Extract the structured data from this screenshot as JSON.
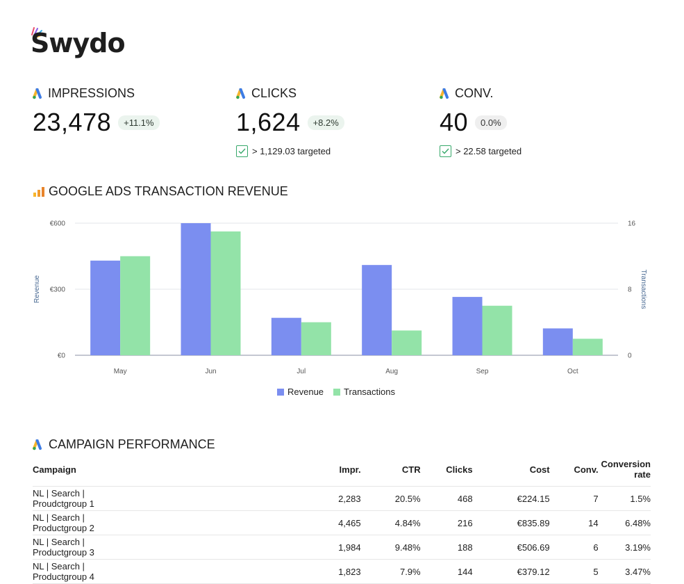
{
  "brand": {
    "logo_text": "Swydo"
  },
  "kpis": [
    {
      "title": "IMPRESSIONS",
      "value": "23,478",
      "change": "+11.1%",
      "target": ""
    },
    {
      "title": "CLICKS",
      "value": "1,624",
      "change": "+8.2%",
      "target": "> 1,129.03 targeted"
    },
    {
      "title": "CONV.",
      "value": "40",
      "change": "0.0%",
      "target": "> 22.58 targeted"
    }
  ],
  "icons": {
    "kpi": "google-ads-icon",
    "chart": "bar-chart-icon",
    "target": "checkbox-checked-icon"
  },
  "colors": {
    "revenue": "#7b8ef0",
    "transactions": "#93e3a8",
    "badge_bg": "#ebf4ee",
    "check": "#36a86a"
  },
  "chart_section": {
    "title": "GOOGLE ADS TRANSACTION REVENUE"
  },
  "chart_data": {
    "type": "bar",
    "categories": [
      "May",
      "Jun",
      "Jul",
      "Aug",
      "Sep",
      "Oct"
    ],
    "series": [
      {
        "name": "Revenue",
        "axis": "left",
        "values": [
          430,
          600,
          170,
          410,
          265,
          122
        ]
      },
      {
        "name": "Transactions",
        "axis": "right",
        "values": [
          12,
          15,
          4,
          3,
          6,
          2
        ]
      }
    ],
    "y_left": {
      "label": "Revenue",
      "ticks": [
        "€0",
        "€300",
        "€600"
      ],
      "range": [
        0,
        600
      ]
    },
    "y_right": {
      "label": "Transactions",
      "ticks": [
        "0",
        "8",
        "16"
      ],
      "range": [
        0,
        16
      ]
    },
    "legend": "bottom",
    "grid": true
  },
  "table_section": {
    "title": "CAMPAIGN PERFORMANCE"
  },
  "table": {
    "headers": [
      "Campaign",
      "Impr.",
      "CTR",
      "Clicks",
      "Cost",
      "Conv.",
      "Conversion rate"
    ],
    "rows": [
      [
        "NL | Search | Proudctgroup 1",
        "2,283",
        "20.5%",
        "468",
        "€224.15",
        "7",
        "1.5%"
      ],
      [
        "NL | Search | Productgroup 2",
        "4,465",
        "4.84%",
        "216",
        "€835.89",
        "14",
        "6.48%"
      ],
      [
        "NL | Search | Productgroup 3",
        "1,984",
        "9.48%",
        "188",
        "€506.69",
        "6",
        "3.19%"
      ],
      [
        "NL | Search | Productgroup 4",
        "1,823",
        "7.9%",
        "144",
        "€379.12",
        "5",
        "3.47%"
      ]
    ]
  }
}
